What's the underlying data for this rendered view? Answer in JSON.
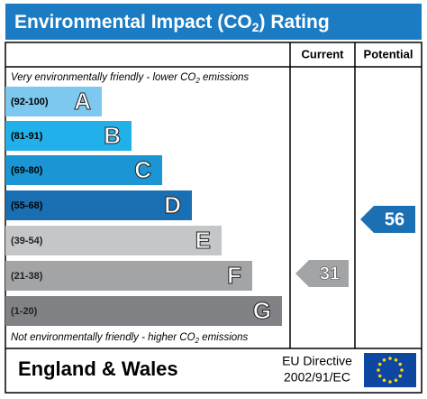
{
  "header": {
    "title": [
      "Environmental Impact (CO",
      "2",
      ") Rating"
    ]
  },
  "columns": {
    "current": "Current",
    "potential": "Potential"
  },
  "top_note": [
    "Very environmentally friendly - lower CO",
    "2",
    " emissions"
  ],
  "bands": [
    {
      "range": "(92-100)",
      "letter": "A"
    },
    {
      "range": "(81-91)",
      "letter": "B"
    },
    {
      "range": "(69-80)",
      "letter": "C"
    },
    {
      "range": "(55-68)",
      "letter": "D"
    },
    {
      "range": "(39-54)",
      "letter": "E"
    },
    {
      "range": "(21-38)",
      "letter": "F"
    },
    {
      "range": "(1-20)",
      "letter": "G"
    }
  ],
  "bottom_note": [
    "Not environmentally friendly - higher CO",
    "2",
    " emissions"
  ],
  "current": 31,
  "potential": 56,
  "footer": {
    "region": "England & Wales",
    "directive": [
      "EU Directive",
      "2002/91/EC"
    ]
  }
}
